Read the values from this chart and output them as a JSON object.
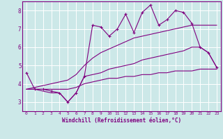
{
  "xlabel": "Windchill (Refroidissement éolien,°C)",
  "background_color": "#cce8e8",
  "grid_color": "#ffffff",
  "line_color": "#800080",
  "x_values": [
    0,
    1,
    2,
    3,
    4,
    5,
    6,
    7,
    8,
    9,
    10,
    11,
    12,
    13,
    14,
    15,
    16,
    17,
    18,
    19,
    20,
    21,
    22,
    23
  ],
  "line1_y": [
    4.6,
    3.7,
    3.7,
    3.6,
    3.5,
    3.0,
    3.5,
    4.4,
    7.2,
    7.1,
    6.6,
    7.0,
    7.8,
    6.8,
    7.9,
    8.3,
    7.2,
    7.5,
    8.0,
    7.9,
    7.3,
    6.0,
    5.7,
    4.9
  ],
  "line2_y": [
    3.7,
    3.7,
    3.6,
    3.5,
    3.5,
    3.0,
    3.5,
    4.4,
    4.5,
    4.6,
    4.8,
    4.9,
    5.0,
    5.1,
    5.3,
    5.4,
    5.5,
    5.6,
    5.7,
    5.8,
    6.0,
    6.0,
    5.7,
    4.9
  ],
  "line3_y": [
    3.7,
    3.7,
    3.7,
    3.7,
    3.7,
    3.7,
    3.8,
    4.0,
    4.1,
    4.2,
    4.3,
    4.3,
    4.4,
    4.4,
    4.5,
    4.5,
    4.6,
    4.6,
    4.7,
    4.7,
    4.7,
    4.8,
    4.8,
    4.8
  ],
  "line4_y": [
    3.7,
    3.8,
    3.9,
    4.0,
    4.1,
    4.2,
    4.5,
    5.0,
    5.4,
    5.7,
    5.9,
    6.1,
    6.3,
    6.5,
    6.6,
    6.7,
    6.8,
    6.9,
    7.0,
    7.1,
    7.2,
    7.2,
    7.2,
    7.2
  ],
  "ylim": [
    2.5,
    8.5
  ],
  "yticks": [
    3,
    4,
    5,
    6,
    7,
    8
  ],
  "xticks": [
    0,
    1,
    2,
    3,
    4,
    5,
    6,
    7,
    8,
    9,
    10,
    11,
    12,
    13,
    14,
    15,
    16,
    17,
    18,
    19,
    20,
    21,
    22,
    23
  ],
  "figsize": [
    3.2,
    2.0
  ],
  "dpi": 100
}
